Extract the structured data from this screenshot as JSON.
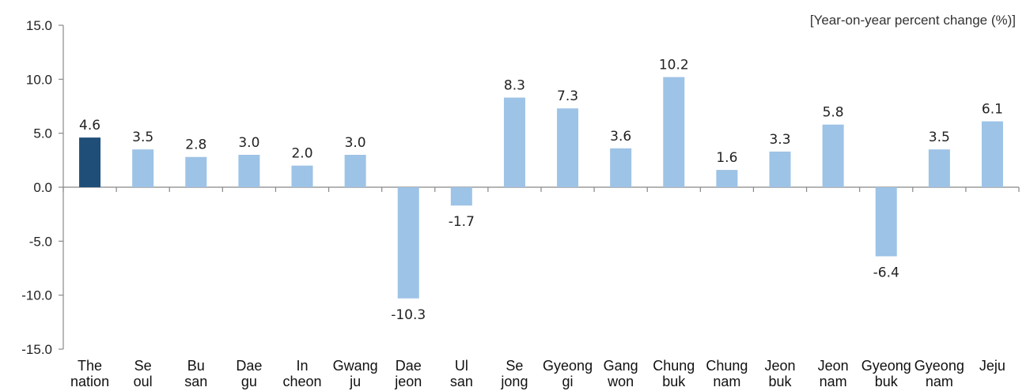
{
  "chart_data": {
    "type": "bar",
    "unit_label": "[Year-on-year percent change (%)]",
    "categories": [
      [
        "The",
        "nation"
      ],
      [
        "Se",
        "oul"
      ],
      [
        "Bu",
        "san"
      ],
      [
        "Dae",
        "gu"
      ],
      [
        "In",
        "cheon"
      ],
      [
        "Gwang",
        "ju"
      ],
      [
        "Dae",
        "jeon"
      ],
      [
        "Ul",
        "san"
      ],
      [
        "Se",
        "jong"
      ],
      [
        "Gyeong",
        "gi"
      ],
      [
        "Gang",
        "won"
      ],
      [
        "Chung",
        "buk"
      ],
      [
        "Chung",
        "nam"
      ],
      [
        "Jeon",
        "buk"
      ],
      [
        "Jeon",
        "nam"
      ],
      [
        "Gyeong",
        "buk"
      ],
      [
        "Gyeong",
        "nam"
      ],
      [
        "Jeju"
      ]
    ],
    "values": [
      4.6,
      3.5,
      2.8,
      3.0,
      2.0,
      3.0,
      -10.3,
      -1.7,
      8.3,
      7.3,
      3.6,
      10.2,
      1.6,
      3.3,
      5.8,
      -6.4,
      3.5,
      6.1
    ],
    "value_labels": [
      "4.6",
      "3.5",
      "2.8",
      "3.0",
      "2.0",
      "3.0",
      "-10.3",
      "-1.7",
      "8.3",
      "7.3",
      "3.6",
      "10.2",
      "1.6",
      "3.3",
      "5.8",
      "-6.4",
      "3.5",
      "6.1"
    ],
    "y_ticks": [
      15.0,
      10.0,
      5.0,
      0.0,
      -5.0,
      -10.0,
      -15.0
    ],
    "y_tick_labels": [
      "15.0",
      "10.0",
      "5.0",
      "0.0",
      "-5.0",
      "-10.0",
      "-15.0"
    ],
    "ylim": [
      -15,
      15
    ],
    "grid": false,
    "colors": {
      "highlight": "#1f4e79",
      "bar": "#9dc3e6",
      "axis": "#888888"
    },
    "highlight_index": 0
  }
}
